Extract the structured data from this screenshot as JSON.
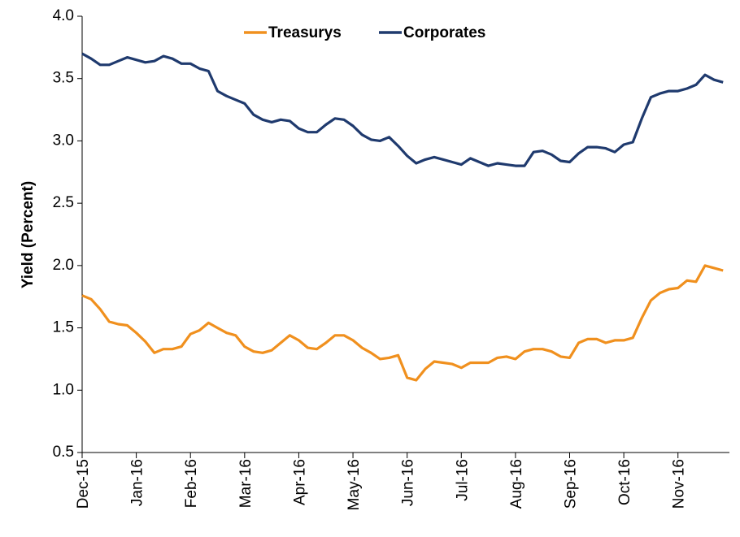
{
  "chart_data": {
    "type": "line",
    "y_label": "Yield (Percent)",
    "categories": [
      "Dec-15",
      null,
      null,
      null,
      null,
      null,
      "Jan-16",
      null,
      null,
      null,
      null,
      null,
      "Feb-16",
      null,
      null,
      null,
      null,
      null,
      "Mar-16",
      null,
      null,
      null,
      null,
      null,
      "Apr-16",
      null,
      null,
      null,
      null,
      null,
      "May-16",
      null,
      null,
      null,
      null,
      null,
      "Jun-16",
      null,
      null,
      null,
      null,
      null,
      "Jul-16",
      null,
      null,
      null,
      null,
      null,
      "Aug-16",
      null,
      null,
      null,
      null,
      null,
      "Sep-16",
      null,
      null,
      null,
      null,
      null,
      "Oct-16",
      null,
      null,
      null,
      null,
      null,
      "Nov-16",
      null,
      null,
      null,
      null,
      null
    ],
    "series": [
      {
        "name": "Treasurys",
        "color": "#f0901e",
        "values": [
          1.76,
          1.73,
          1.65,
          1.55,
          1.53,
          1.52,
          1.46,
          1.39,
          1.3,
          1.33,
          1.33,
          1.35,
          1.45,
          1.48,
          1.54,
          1.5,
          1.46,
          1.44,
          1.35,
          1.31,
          1.3,
          1.32,
          1.38,
          1.44,
          1.4,
          1.34,
          1.33,
          1.38,
          1.44,
          1.44,
          1.4,
          1.34,
          1.3,
          1.25,
          1.26,
          1.28,
          1.1,
          1.08,
          1.17,
          1.23,
          1.22,
          1.21,
          1.18,
          1.22,
          1.22,
          1.22,
          1.26,
          1.27,
          1.25,
          1.31,
          1.33,
          1.33,
          1.31,
          1.27,
          1.26,
          1.38,
          1.41,
          1.41,
          1.38,
          1.4,
          1.4,
          1.42,
          1.58,
          1.72,
          1.78,
          1.81,
          1.82,
          1.88,
          1.87,
          2.0,
          1.98,
          1.96
        ]
      },
      {
        "name": "Corporates",
        "color": "#1f3a6e",
        "values": [
          3.7,
          3.66,
          3.61,
          3.61,
          3.64,
          3.67,
          3.65,
          3.63,
          3.64,
          3.68,
          3.66,
          3.62,
          3.62,
          3.58,
          3.56,
          3.4,
          3.36,
          3.33,
          3.3,
          3.21,
          3.17,
          3.15,
          3.17,
          3.16,
          3.1,
          3.07,
          3.07,
          3.13,
          3.18,
          3.17,
          3.12,
          3.05,
          3.01,
          3.0,
          3.03,
          2.96,
          2.88,
          2.82,
          2.85,
          2.87,
          2.85,
          2.83,
          2.81,
          2.86,
          2.83,
          2.8,
          2.82,
          2.81,
          2.8,
          2.8,
          2.91,
          2.92,
          2.89,
          2.84,
          2.83,
          2.9,
          2.95,
          2.95,
          2.94,
          2.91,
          2.97,
          2.99,
          3.18,
          3.35,
          3.38,
          3.4,
          3.4,
          3.42,
          3.45,
          3.53,
          3.49,
          3.47
        ]
      }
    ],
    "ylim": [
      0.5,
      4.0
    ],
    "yticks": [
      {
        "value": 0.5,
        "label": "0.5"
      },
      {
        "value": 1.0,
        "label": "1.0"
      },
      {
        "value": 1.5,
        "label": "1.5"
      },
      {
        "value": 2.0,
        "label": "2.0"
      },
      {
        "value": 2.5,
        "label": "2.5"
      },
      {
        "value": 3.0,
        "label": "3.0"
      },
      {
        "value": 3.5,
        "label": "3.5"
      },
      {
        "value": 4.0,
        "label": "4.0"
      }
    ],
    "grid": false,
    "legend": "top"
  }
}
